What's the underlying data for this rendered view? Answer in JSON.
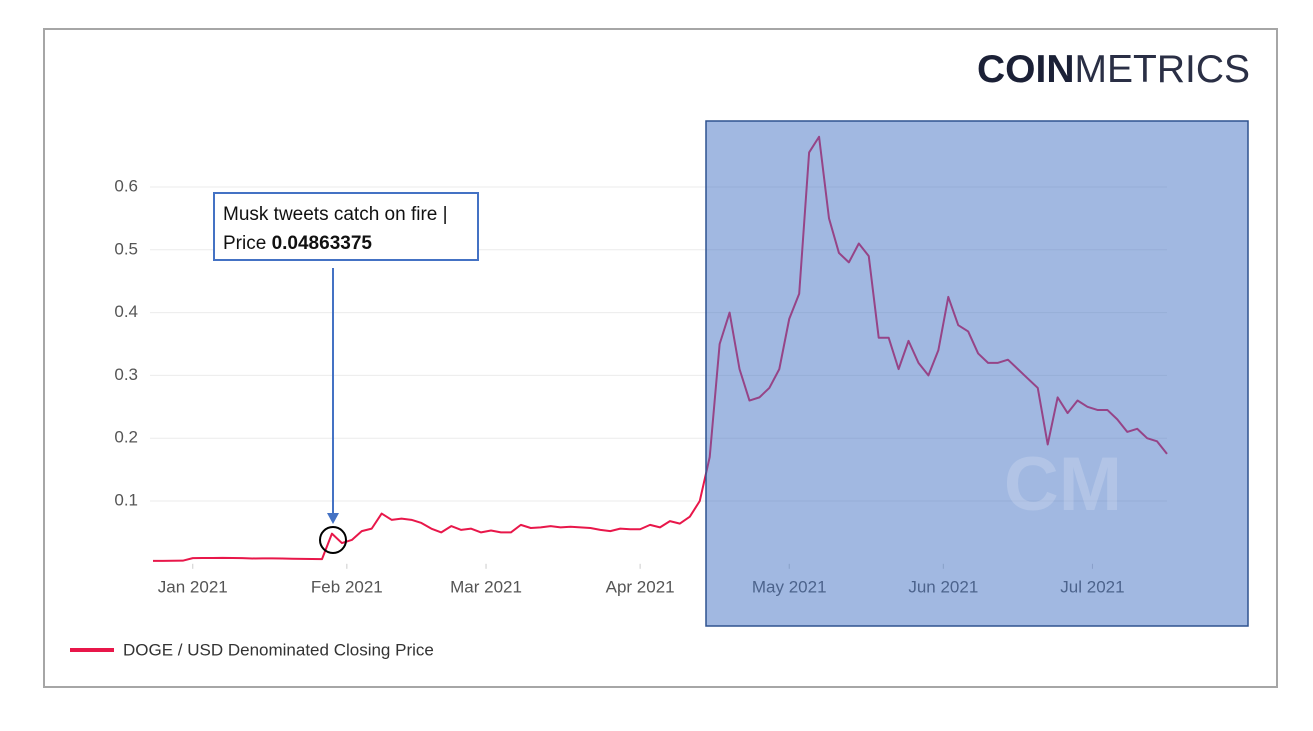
{
  "chart_data": {
    "type": "line",
    "logo": {
      "bold": "COIN",
      "light": "METRICS"
    },
    "watermark": "CM",
    "annotation": {
      "text": "Musk tweets catch on fire | Price",
      "price": "0.04863375"
    },
    "legend": "bottom-left",
    "grid": true,
    "ylim": [
      0,
      0.7
    ],
    "yticks": [
      0.1,
      0.2,
      0.3,
      0.4,
      0.5,
      0.6
    ],
    "xlim": [
      0,
      102
    ],
    "xticks": [
      {
        "value": 4,
        "label": "Jan 2021"
      },
      {
        "value": 19.5,
        "label": "Feb 2021"
      },
      {
        "value": 33.5,
        "label": "Mar 2021"
      },
      {
        "value": 49,
        "label": "Apr 2021"
      },
      {
        "value": 64,
        "label": "May 2021"
      },
      {
        "value": 79.5,
        "label": "Jun 2021"
      },
      {
        "value": 94.5,
        "label": "Jul 2021"
      }
    ],
    "series": [
      {
        "name": "DOGE / USD Denominated Closing Price",
        "color": "#e8174a",
        "values": [
          0.0047,
          0.0047,
          0.0048,
          0.005,
          0.009,
          0.0093,
          0.0092,
          0.0095,
          0.0093,
          0.009,
          0.0085,
          0.0087,
          0.0086,
          0.0084,
          0.008,
          0.0078,
          0.0076,
          0.0075,
          0.048,
          0.033,
          0.038,
          0.052,
          0.056,
          0.08,
          0.07,
          0.072,
          0.07,
          0.065,
          0.056,
          0.05,
          0.06,
          0.054,
          0.056,
          0.05,
          0.053,
          0.05,
          0.05,
          0.062,
          0.057,
          0.058,
          0.06,
          0.058,
          0.059,
          0.058,
          0.057,
          0.054,
          0.052,
          0.056,
          0.055,
          0.055,
          0.062,
          0.058,
          0.068,
          0.064,
          0.075,
          0.1,
          0.17,
          0.35,
          0.4,
          0.31,
          0.26,
          0.265,
          0.28,
          0.31,
          0.39,
          0.43,
          0.655,
          0.68,
          0.55,
          0.495,
          0.48,
          0.51,
          0.49,
          0.36,
          0.36,
          0.31,
          0.355,
          0.32,
          0.3,
          0.34,
          0.425,
          0.38,
          0.37,
          0.335,
          0.32,
          0.32,
          0.325,
          0.31,
          0.295,
          0.28,
          0.19,
          0.265,
          0.24,
          0.26,
          0.25,
          0.245,
          0.245,
          0.23,
          0.21,
          0.215,
          0.2,
          0.195,
          0.175
        ]
      }
    ]
  }
}
